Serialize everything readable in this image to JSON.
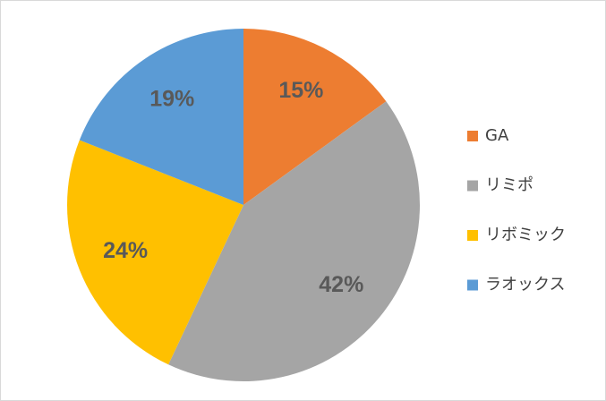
{
  "chart_data": {
    "type": "pie",
    "categories": [
      "GA",
      "リミポ",
      "リボミック",
      "ラオックス"
    ],
    "values": [
      15,
      42,
      24,
      19
    ],
    "value_labels": [
      "15%",
      "42%",
      "24%",
      "19%"
    ],
    "colors": [
      "#ed7d31",
      "#a5a5a5",
      "#ffc000",
      "#5b9bd5"
    ],
    "legend": "right"
  }
}
